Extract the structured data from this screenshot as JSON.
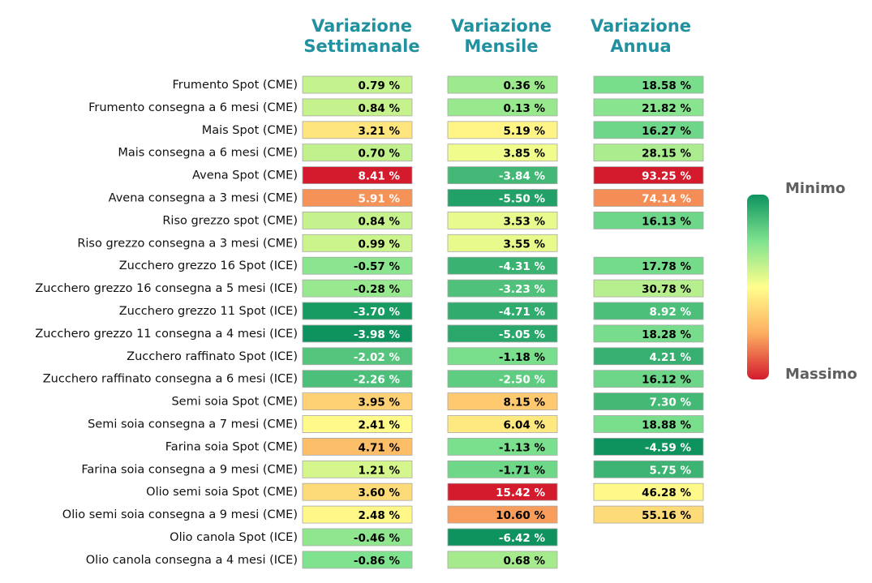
{
  "chart_data": {
    "type": "table",
    "columns": [
      "Variazione\nSettimanale",
      "Variazione\nMensile",
      "Variazione\nAnnua"
    ],
    "rows": [
      "Frumento Spot (CME)",
      "Frumento consegna a 6 mesi (CME)",
      "Mais Spot (CME)",
      "Mais consegna a 6 mesi (CME)",
      "Avena Spot (CME)",
      "Avena consegna a 3 mesi (CME)",
      "Riso grezzo spot (CME)",
      "Riso grezzo consegna a 3 mesi (CME)",
      "Zucchero grezzo 16 Spot (ICE)",
      "Zucchero grezzo 16 consegna a 5 mesi (ICE)",
      "Zucchero grezzo 11 Spot (ICE)",
      "Zucchero grezzo 11 consegna a 4 mesi (ICE)",
      "Zucchero raffinato Spot (ICE)",
      "Zucchero raffinato consegna a 6 mesi (ICE)",
      "Semi soia Spot (CME)",
      "Semi soia consegna a 7 mesi (CME)",
      "Farina soia Spot (CME)",
      "Farina soia consegna a 9 mesi (CME)",
      "Olio semi soia Spot (CME)",
      "Olio semi soia consegna a 9 mesi (CME)",
      "Olio canola Spot (ICE)",
      "Olio canola consegna a 4 mesi (ICE)"
    ],
    "values": [
      [
        0.79,
        0.36,
        18.58
      ],
      [
        0.84,
        0.13,
        21.82
      ],
      [
        3.21,
        5.19,
        16.27
      ],
      [
        0.7,
        3.85,
        28.15
      ],
      [
        8.41,
        -3.84,
        93.25
      ],
      [
        5.91,
        -5.5,
        74.14
      ],
      [
        0.84,
        3.53,
        16.13
      ],
      [
        0.99,
        3.55,
        null
      ],
      [
        -0.57,
        -4.31,
        17.78
      ],
      [
        -0.28,
        -3.23,
        30.78
      ],
      [
        -3.7,
        -4.71,
        8.92
      ],
      [
        -3.98,
        -5.05,
        18.28
      ],
      [
        -2.02,
        -1.18,
        4.21
      ],
      [
        -2.26,
        -2.5,
        16.12
      ],
      [
        3.95,
        8.15,
        7.3
      ],
      [
        2.41,
        6.04,
        18.88
      ],
      [
        4.71,
        -1.13,
        -4.59
      ],
      [
        1.21,
        -1.71,
        5.75
      ],
      [
        3.6,
        15.42,
        46.28
      ],
      [
        2.48,
        10.6,
        55.16
      ],
      [
        -0.46,
        -6.42,
        null
      ],
      [
        -0.86,
        0.68,
        null
      ]
    ],
    "value_suffix": " %",
    "legend": {
      "min_label": "Minimo",
      "max_label": "Massimo",
      "placement": "right"
    },
    "colors": {
      "header": "#2191a0",
      "legend_text": "#5f5f5f",
      "scale": [
        "#0e935f",
        "#7ee28f",
        "#ffff8c",
        "#fdae61",
        "#d41b2e"
      ]
    }
  }
}
